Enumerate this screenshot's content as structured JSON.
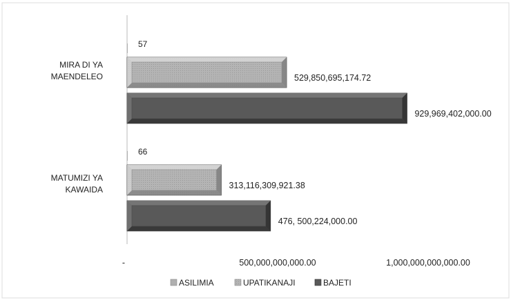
{
  "chart_data": {
    "type": "bar",
    "orientation": "horizontal",
    "title": "",
    "xlabel": "",
    "ylabel": "",
    "categories": [
      "MIRADI YA MAENDELEO",
      "MATUMIZI YA KAWAIDA"
    ],
    "category_label_lines": [
      [
        "MIRA DI YA",
        "MAENDELEO"
      ],
      [
        "MATUMIZI YA",
        "KAWAIDA"
      ]
    ],
    "series": [
      {
        "name": "ASILIMIA",
        "values": [
          57,
          66
        ],
        "value_labels": [
          "57",
          "66"
        ],
        "color": "#b0b0b0"
      },
      {
        "name": "UPATIKANAJI",
        "values": [
          529850695174.72,
          313116309921.38
        ],
        "value_labels": [
          "529,850,695,174.72",
          "313,116,309,921.38"
        ],
        "color": "#a6a6a6"
      },
      {
        "name": "BAJETI",
        "values": [
          929969402000.0,
          476500224000.0
        ],
        "value_labels": [
          "929,969,402,000.00",
          "476, 500,224,000.00"
        ],
        "color": "#595959"
      }
    ],
    "xlim": [
      0,
      1250000000000
    ],
    "x_ticks": [
      0,
      500000000000,
      1000000000000
    ],
    "x_tick_labels": [
      "-",
      "500,000,000,000.00",
      "1,000,000,000,000.00"
    ],
    "grid": false,
    "legend_position": "bottom"
  }
}
